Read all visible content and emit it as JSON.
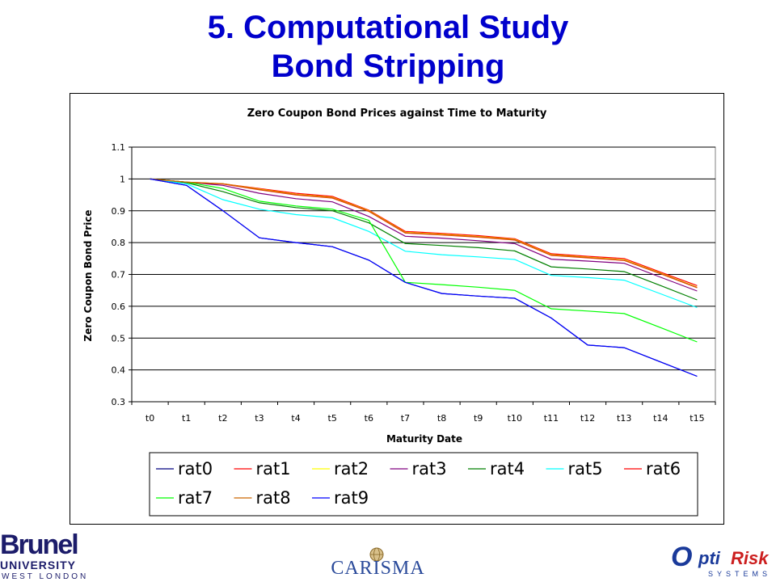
{
  "slide": {
    "title_line1": "5. Computational Study",
    "title_line2": "Bond Stripping",
    "title_color": "#0000cc"
  },
  "logos": {
    "brunel_line1": "Brunel",
    "brunel_line2": "UNIVERSITY",
    "brunel_line3": "WEST LONDON",
    "carisma": "CARISMA",
    "optirisk_o": "O",
    "optirisk_pti": "pti",
    "optirisk_risk": "Risk",
    "optirisk_systems": "SYSTEMS"
  },
  "chart_data": {
    "type": "line",
    "title": "Zero Coupon Bond Prices against Time to Maturity",
    "xlabel": "Maturity Date",
    "ylabel": "Zero Coupon Bond Price",
    "categories": [
      "t0",
      "t1",
      "t2",
      "t3",
      "t4",
      "t5",
      "t6",
      "t7",
      "t8",
      "t9",
      "t10",
      "t11",
      "t12",
      "t13",
      "t14",
      "t15"
    ],
    "ylim": [
      0.3,
      1.1
    ],
    "yticks": [
      "0.3",
      "0.4",
      "0.5",
      "0.6",
      "0.7",
      "0.8",
      "0.9",
      "1",
      "1.1"
    ],
    "grid": "horizontal",
    "legend_position": "bottom",
    "series": [
      {
        "name": "rat0",
        "color": "#000080",
        "values": [
          1.0,
          0.98,
          0.9,
          0.815,
          0.8,
          0.787,
          0.745,
          0.675,
          0.64,
          0.632,
          0.625,
          0.563,
          0.478,
          0.47,
          0.425,
          0.38
        ]
      },
      {
        "name": "rat1",
        "color": "#ff0000",
        "values": [
          1.0,
          0.99,
          0.985,
          0.97,
          0.955,
          0.945,
          0.902,
          0.835,
          0.829,
          0.822,
          0.812,
          0.765,
          0.757,
          0.75,
          0.707,
          0.665
        ]
      },
      {
        "name": "rat2",
        "color": "#ffff00",
        "values": [
          1.0,
          0.99,
          0.985,
          0.968,
          0.952,
          0.942,
          0.9,
          0.832,
          0.826,
          0.819,
          0.81,
          0.762,
          0.754,
          0.746,
          0.704,
          0.66
        ]
      },
      {
        "name": "rat3",
        "color": "#800080",
        "values": [
          1.0,
          0.99,
          0.98,
          0.955,
          0.938,
          0.928,
          0.882,
          0.82,
          0.814,
          0.806,
          0.797,
          0.748,
          0.742,
          0.735,
          0.691,
          0.648
        ]
      },
      {
        "name": "rat4",
        "color": "#008000",
        "values": [
          1.0,
          0.988,
          0.96,
          0.925,
          0.91,
          0.9,
          0.862,
          0.797,
          0.791,
          0.784,
          0.774,
          0.724,
          0.717,
          0.709,
          0.665,
          0.62
        ]
      },
      {
        "name": "rat5",
        "color": "#00ffff",
        "values": [
          1.0,
          0.985,
          0.935,
          0.905,
          0.888,
          0.878,
          0.835,
          0.773,
          0.762,
          0.755,
          0.747,
          0.697,
          0.69,
          0.682,
          0.639,
          0.596
        ]
      },
      {
        "name": "rat6",
        "color": "#ff0000",
        "values": [
          1.0,
          0.99,
          0.984,
          0.966,
          0.95,
          0.94,
          0.898,
          0.83,
          0.824,
          0.817,
          0.808,
          0.76,
          0.752,
          0.744,
          0.702,
          0.658
        ]
      },
      {
        "name": "rat7",
        "color": "#00ff00",
        "values": [
          1.0,
          0.99,
          0.97,
          0.93,
          0.915,
          0.905,
          0.87,
          0.675,
          0.668,
          0.66,
          0.65,
          0.592,
          0.585,
          0.577,
          0.533,
          0.488
        ]
      },
      {
        "name": "rat8",
        "color": "#cc6600",
        "values": [
          1.0,
          0.99,
          0.985,
          0.967,
          0.951,
          0.941,
          0.899,
          0.831,
          0.825,
          0.818,
          0.809,
          0.761,
          0.753,
          0.745,
          0.703,
          0.659
        ]
      },
      {
        "name": "rat9",
        "color": "#0000ff",
        "values": [
          1.0,
          0.98,
          0.9,
          0.815,
          0.8,
          0.787,
          0.745,
          0.675,
          0.64,
          0.632,
          0.625,
          0.563,
          0.478,
          0.47,
          0.425,
          0.38
        ]
      }
    ]
  }
}
